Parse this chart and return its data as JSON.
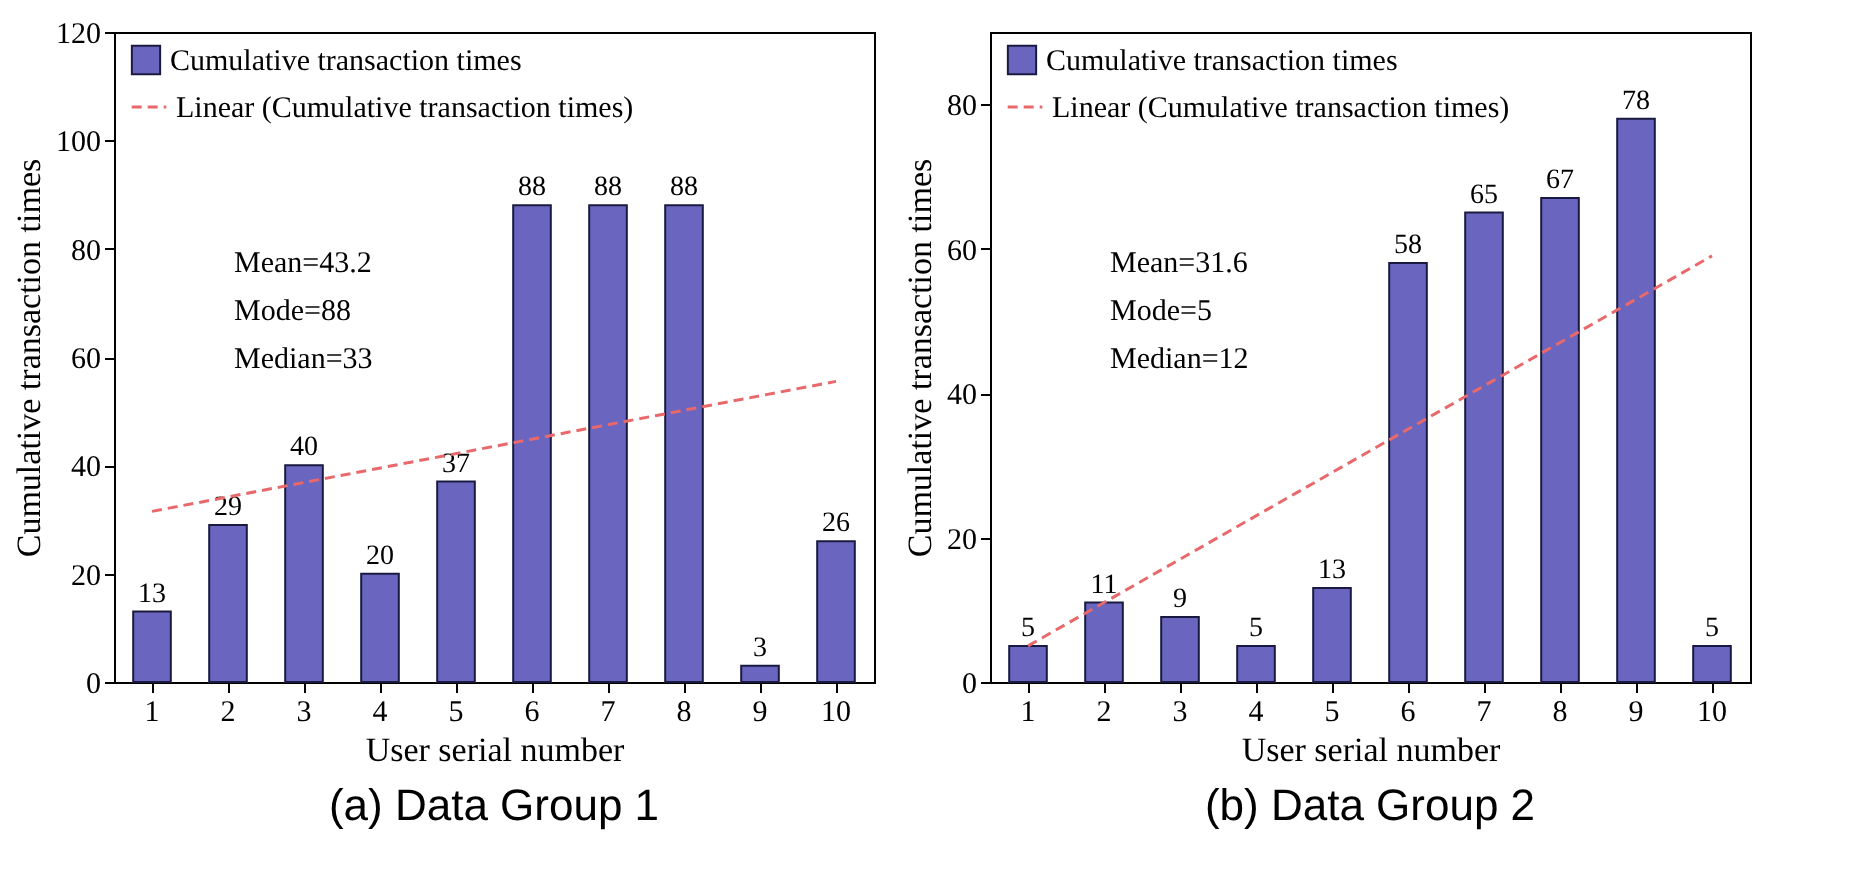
{
  "chart_data": [
    {
      "type": "bar",
      "title": "(a) Data Group 1",
      "xlabel": "User serial number",
      "ylabel": "Cumulative transaction times",
      "categories": [
        "1",
        "2",
        "3",
        "4",
        "5",
        "6",
        "7",
        "8",
        "9",
        "10"
      ],
      "series": [
        {
          "name": "Cumulative transaction times",
          "color": "#6a66c0",
          "values": [
            13,
            29,
            40,
            20,
            37,
            88,
            88,
            88,
            3,
            26
          ],
          "value_labels": [
            "13",
            "29",
            "40",
            "20",
            "37",
            "88",
            "88",
            "88",
            "3",
            "26"
          ]
        },
        {
          "name": "Linear (Cumulative transaction times)",
          "type": "line",
          "color": "#e8696b",
          "line_style": "dashed",
          "x": [
            "1",
            "10"
          ],
          "values": [
            31.5,
            55.5
          ]
        }
      ],
      "ylim": [
        0,
        120
      ],
      "yticks": [
        0,
        20,
        40,
        60,
        80,
        100,
        120
      ],
      "legend": "top left",
      "annotations": [
        "Mean=43.2",
        "Mode=88",
        "Median=33"
      ]
    },
    {
      "type": "bar",
      "title": "(b) Data Group 2",
      "xlabel": "User serial number",
      "ylabel": "Cumulative transaction times",
      "categories": [
        "1",
        "2",
        "3",
        "4",
        "5",
        "6",
        "7",
        "8",
        "9",
        "10"
      ],
      "series": [
        {
          "name": "Cumulative transaction times",
          "color": "#6a66c0",
          "values": [
            5,
            11,
            9,
            5,
            13,
            58,
            65,
            67,
            78,
            5
          ],
          "value_labels": [
            "5",
            "11",
            "9",
            "5",
            "13",
            "58",
            "65",
            "67",
            "78",
            "5"
          ]
        },
        {
          "name": "Linear (Cumulative transaction times)",
          "type": "line",
          "color": "#e8696b",
          "line_style": "dashed",
          "x": [
            "1",
            "10"
          ],
          "values": [
            5,
            59
          ]
        }
      ],
      "ylim": [
        0,
        90
      ],
      "yticks": [
        0,
        20,
        40,
        60,
        80
      ],
      "legend": "top left",
      "annotations": [
        "Mean=31.6",
        "Mode=5",
        "Median=12"
      ]
    }
  ]
}
